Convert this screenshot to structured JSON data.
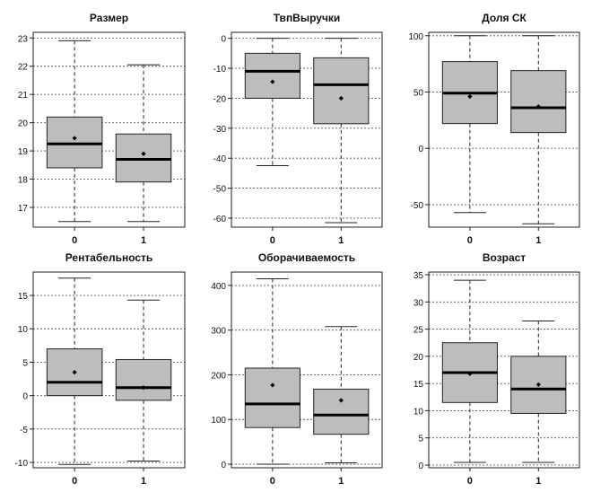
{
  "chart_data": [
    {
      "type": "boxplot",
      "title": "Размер",
      "categories": [
        "0",
        "1"
      ],
      "yticks": [
        17,
        18,
        19,
        20,
        21,
        22,
        23
      ],
      "ylim": [
        16.3,
        23.2
      ],
      "grid": true,
      "boxes": [
        {
          "category": "0",
          "whisker_low": 16.5,
          "q1": 18.4,
          "median": 19.25,
          "q3": 20.2,
          "whisker_high": 22.9,
          "mean": 19.45
        },
        {
          "category": "1",
          "whisker_low": 16.5,
          "q1": 17.9,
          "median": 18.7,
          "q3": 19.6,
          "whisker_high": 22.05,
          "mean": 18.9
        }
      ]
    },
    {
      "type": "boxplot",
      "title": "ТвпВыручки",
      "categories": [
        "0",
        "1"
      ],
      "yticks": [
        0,
        -10,
        -20,
        -30,
        -40,
        -50,
        -60
      ],
      "ylim": [
        -63,
        2
      ],
      "grid": true,
      "boxes": [
        {
          "category": "0",
          "whisker_low": -42.5,
          "q1": -20,
          "median": -11,
          "q3": -5,
          "whisker_high": 0,
          "mean": -14.5
        },
        {
          "category": "1",
          "whisker_low": -61.5,
          "q1": -28.5,
          "median": -15.5,
          "q3": -6.5,
          "whisker_high": 0,
          "mean": -20
        }
      ]
    },
    {
      "type": "boxplot",
      "title": "Доля СК",
      "categories": [
        "0",
        "1"
      ],
      "yticks": [
        100,
        50,
        0,
        -50
      ],
      "ylim": [
        -70,
        103
      ],
      "grid": true,
      "boxes": [
        {
          "category": "0",
          "whisker_low": -57,
          "q1": 22,
          "median": 49,
          "q3": 77,
          "whisker_high": 100,
          "mean": 46
        },
        {
          "category": "1",
          "whisker_low": -67,
          "q1": 14,
          "median": 36,
          "q3": 69,
          "whisker_high": 100,
          "mean": 37
        }
      ]
    },
    {
      "type": "boxplot",
      "title": "Рентабельность",
      "categories": [
        "0",
        "1"
      ],
      "yticks": [
        15,
        10,
        5,
        0,
        -5,
        -10
      ],
      "ylim": [
        -10.8,
        18.5
      ],
      "grid": true,
      "boxes": [
        {
          "category": "0",
          "whisker_low": -10.3,
          "q1": 0,
          "median": 2,
          "q3": 7,
          "whisker_high": 17.6,
          "mean": 3.5
        },
        {
          "category": "1",
          "whisker_low": -9.8,
          "q1": -0.7,
          "median": 1.2,
          "q3": 5.4,
          "whisker_high": 14.3,
          "mean": 1.2
        }
      ]
    },
    {
      "type": "boxplot",
      "title": "Оборачиваемость",
      "categories": [
        "0",
        "1"
      ],
      "yticks": [
        0,
        100,
        200,
        300,
        400
      ],
      "ylim": [
        -8,
        430
      ],
      "grid": true,
      "boxes": [
        {
          "category": "0",
          "whisker_low": 0,
          "q1": 82,
          "median": 135,
          "q3": 215,
          "whisker_high": 415,
          "mean": 177
        },
        {
          "category": "1",
          "whisker_low": 3,
          "q1": 67,
          "median": 110,
          "q3": 168,
          "whisker_high": 308,
          "mean": 143
        }
      ]
    },
    {
      "type": "boxplot",
      "title": "Возраст",
      "categories": [
        "0",
        "1"
      ],
      "yticks": [
        0,
        5,
        10,
        15,
        20,
        25,
        30,
        35
      ],
      "ylim": [
        -0.5,
        35.5
      ],
      "grid": true,
      "boxes": [
        {
          "category": "0",
          "whisker_low": 0.5,
          "q1": 11.5,
          "median": 17,
          "q3": 22.5,
          "whisker_high": 34,
          "mean": 16.8
        },
        {
          "category": "1",
          "whisker_low": 0.5,
          "q1": 9.5,
          "median": 14,
          "q3": 20,
          "whisker_high": 26.5,
          "mean": 14.8
        }
      ]
    }
  ]
}
